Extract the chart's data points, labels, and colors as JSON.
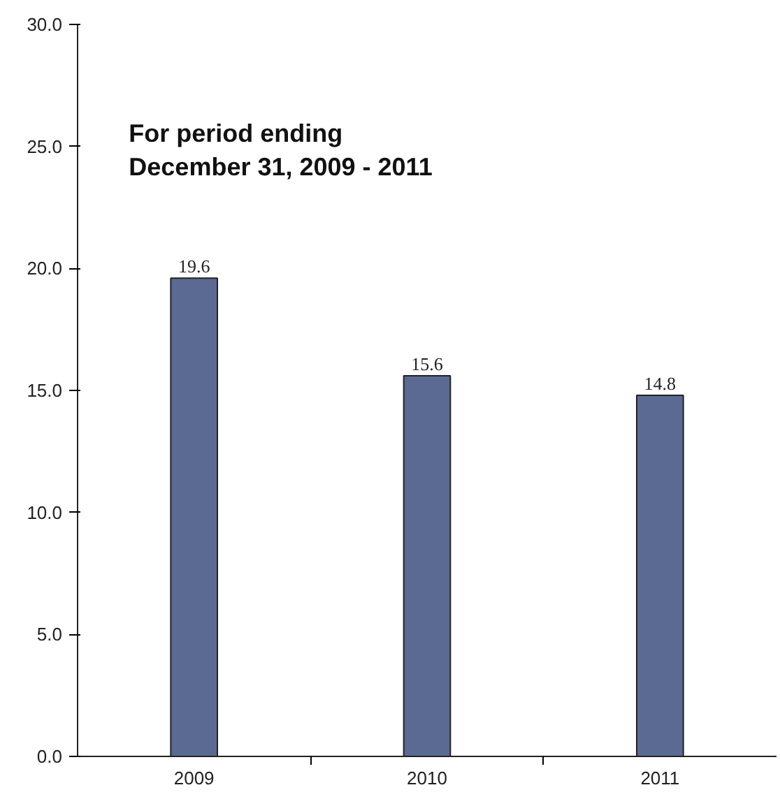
{
  "chart_data": {
    "type": "bar",
    "title": "For period ending\nDecember 31, 2009 - 2011",
    "categories": [
      "2009",
      "2010",
      "2011"
    ],
    "values": [
      19.6,
      15.6,
      14.8
    ],
    "color": "#5b6a92",
    "ylim": [
      0,
      30
    ],
    "yticks": [
      {
        "value": 0,
        "label": "0.0"
      },
      {
        "value": 5,
        "label": "5.0"
      },
      {
        "value": 10,
        "label": "10.0"
      },
      {
        "value": 15,
        "label": "15.0"
      },
      {
        "value": 20,
        "label": "20.0"
      },
      {
        "value": 25,
        "label": "25.0"
      },
      {
        "value": 30,
        "label": "30.0"
      }
    ],
    "grid": false,
    "data_labels": true
  }
}
